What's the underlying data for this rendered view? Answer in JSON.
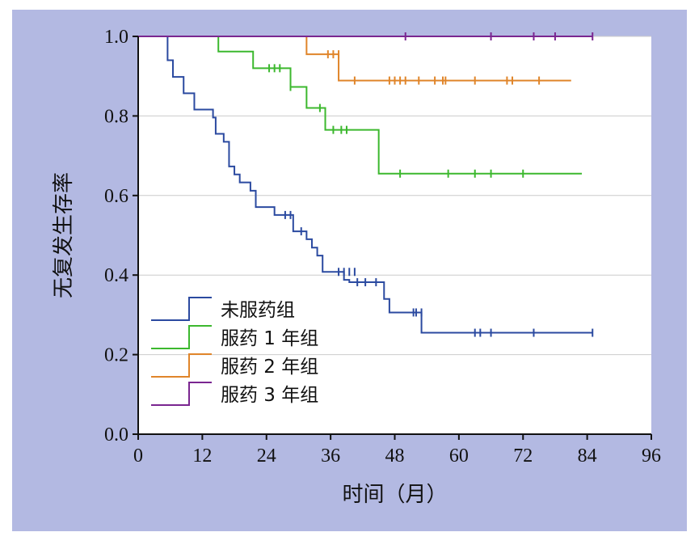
{
  "colors": {
    "background": "#b3b9e2",
    "plot": "#ffffff",
    "grid": "#cccccc"
  },
  "chart_data": {
    "type": "line",
    "step": true,
    "xlabel": "时间（月）",
    "ylabel": "无复发生存率",
    "xlim": [
      0,
      96
    ],
    "ylim": [
      0,
      1.0
    ],
    "xticks": [
      "0",
      "12",
      "24",
      "36",
      "48",
      "60",
      "72",
      "84",
      "96"
    ],
    "yticks": [
      "0.0",
      "0.2",
      "0.4",
      "0.6",
      "0.8",
      "1.0"
    ],
    "grid": "horizontal",
    "legend_position": "bottom-left",
    "series": [
      {
        "name": "未服药组",
        "color": "#2b4aa0",
        "steps": [
          [
            0,
            1.0
          ],
          [
            5.5,
            0.94
          ],
          [
            6.5,
            0.898
          ],
          [
            8.5,
            0.857
          ],
          [
            10.5,
            0.816
          ],
          [
            14,
            0.796
          ],
          [
            14.5,
            0.755
          ],
          [
            16,
            0.735
          ],
          [
            17,
            0.673
          ],
          [
            18,
            0.653
          ],
          [
            19,
            0.633
          ],
          [
            21,
            0.612
          ],
          [
            22,
            0.571
          ],
          [
            25.5,
            0.551
          ],
          [
            29,
            0.51
          ],
          [
            31.5,
            0.49
          ],
          [
            32.5,
            0.469
          ],
          [
            33.5,
            0.449
          ],
          [
            34.5,
            0.408
          ],
          [
            38.5,
            0.388
          ],
          [
            39.5,
            0.382
          ],
          [
            46,
            0.34
          ],
          [
            47,
            0.306
          ],
          [
            53,
            0.255
          ]
        ],
        "end": 85,
        "censors": [
          [
            27.5,
            0.551
          ],
          [
            28.5,
            0.551
          ],
          [
            30.5,
            0.51
          ],
          [
            37.5,
            0.408
          ],
          [
            38.5,
            0.408
          ],
          [
            39.5,
            0.408
          ],
          [
            40.5,
            0.408
          ],
          [
            41,
            0.382
          ],
          [
            42.5,
            0.382
          ],
          [
            44.5,
            0.382
          ],
          [
            51.5,
            0.306
          ],
          [
            52,
            0.306
          ],
          [
            53,
            0.306
          ],
          [
            63,
            0.255
          ],
          [
            64,
            0.255
          ],
          [
            66,
            0.255
          ],
          [
            74,
            0.255
          ],
          [
            85,
            0.255
          ]
        ]
      },
      {
        "name": "服药 1 年组",
        "color": "#3cb82e",
        "steps": [
          [
            0,
            1.0
          ],
          [
            15,
            0.962
          ],
          [
            21.5,
            0.92
          ],
          [
            28.5,
            0.873
          ],
          [
            31.5,
            0.82
          ],
          [
            35,
            0.765
          ],
          [
            45,
            0.655
          ]
        ],
        "end": 83,
        "censors": [
          [
            24.5,
            0.92
          ],
          [
            25.5,
            0.92
          ],
          [
            26.5,
            0.92
          ],
          [
            28.5,
            0.873
          ],
          [
            34,
            0.82
          ],
          [
            36.5,
            0.765
          ],
          [
            38,
            0.765
          ],
          [
            39,
            0.765
          ],
          [
            49,
            0.655
          ],
          [
            58,
            0.655
          ],
          [
            63,
            0.655
          ],
          [
            66,
            0.655
          ],
          [
            72,
            0.655
          ]
        ]
      },
      {
        "name": "服药 2 年组",
        "color": "#e0852a",
        "steps": [
          [
            0,
            1.0
          ],
          [
            31.5,
            0.955
          ],
          [
            37.5,
            0.889
          ]
        ],
        "end": 81,
        "censors": [
          [
            35.5,
            0.955
          ],
          [
            36.5,
            0.955
          ],
          [
            37.5,
            0.955
          ],
          [
            40.5,
            0.889
          ],
          [
            47,
            0.889
          ],
          [
            48,
            0.889
          ],
          [
            49,
            0.889
          ],
          [
            50,
            0.889
          ],
          [
            52.5,
            0.889
          ],
          [
            55.5,
            0.889
          ],
          [
            57,
            0.889
          ],
          [
            57.5,
            0.889
          ],
          [
            63,
            0.889
          ],
          [
            69,
            0.889
          ],
          [
            70,
            0.889
          ],
          [
            75,
            0.889
          ]
        ]
      },
      {
        "name": "服药 3 年组",
        "color": "#7a2690",
        "steps": [
          [
            0,
            1.0
          ]
        ],
        "end": 85,
        "censors": [
          [
            50,
            1.0
          ],
          [
            66,
            1.0
          ],
          [
            74,
            1.0
          ],
          [
            78,
            1.0
          ],
          [
            85,
            1.0
          ]
        ]
      }
    ]
  }
}
